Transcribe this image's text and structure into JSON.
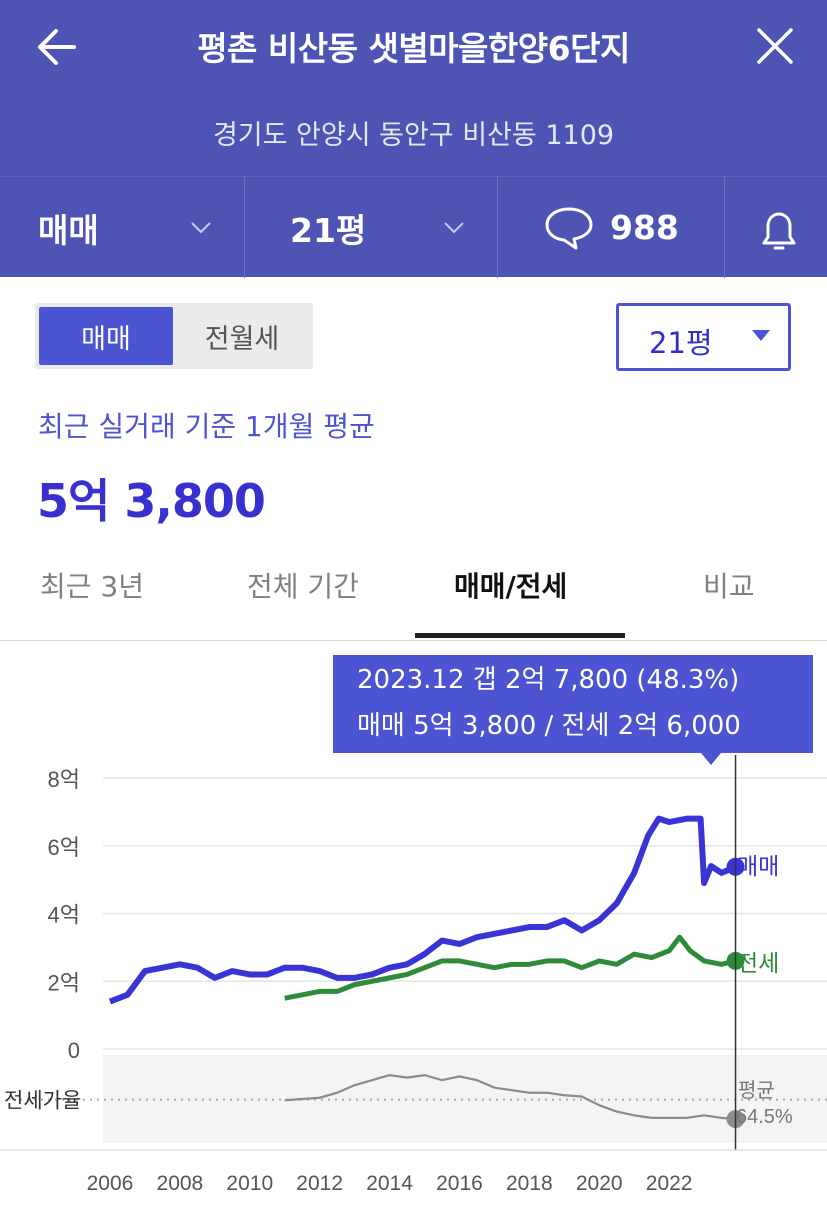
{
  "header": {
    "title": "평촌 비산동 샛별마을한양6단지",
    "address": "경기도 안양시 동안구 비산동 1109",
    "back_icon": "arrow-left-icon",
    "close_icon": "close-icon"
  },
  "tabs_bar": {
    "deal_type": "매매",
    "size": "21평",
    "comment_count": "988",
    "comment_icon": "speech-bubble-icon",
    "bell_icon": "bell-icon"
  },
  "toggle": {
    "selected": "매매",
    "other": "전월세"
  },
  "size_select": {
    "value": "21평"
  },
  "summary": {
    "label": "최근 실거래 기준 1개월 평균",
    "price": "5억 3,800"
  },
  "period_tabs": [
    {
      "label": "최근 3년",
      "active": false
    },
    {
      "label": "전체 기간",
      "active": false
    },
    {
      "label": "매매/전세",
      "active": true
    },
    {
      "label": "비교",
      "active": false
    }
  ],
  "tooltip": {
    "line1": "2023.12  갭 2억 7,800 (48.3%)",
    "line2": "매매 5억 3,800 / 전세 2억 6,000"
  },
  "colors": {
    "brand": "#4d54b3",
    "accent": "#4d54d1",
    "sale": "#3a33d6",
    "jeonse": "#2e8b3a",
    "ratio": "#888888"
  },
  "chart_data": {
    "type": "line",
    "y_ticks": [
      "8억",
      "6억",
      "4억",
      "2억",
      "0"
    ],
    "ylim": [
      0,
      8
    ],
    "xlim": [
      2005.8,
      2024.6
    ],
    "x_ticks": [
      "2006",
      "2008",
      "2010",
      "2012",
      "2014",
      "2016",
      "2018",
      "2020",
      "2022"
    ],
    "series": [
      {
        "name": "매매",
        "x": [
          2006.0,
          2006.5,
          2007.0,
          2007.5,
          2008.0,
          2008.5,
          2009.0,
          2009.5,
          2010.0,
          2010.5,
          2011.0,
          2011.5,
          2012.0,
          2012.5,
          2013.0,
          2013.5,
          2014.0,
          2014.5,
          2015.0,
          2015.5,
          2016.0,
          2016.5,
          2017.0,
          2017.5,
          2018.0,
          2018.5,
          2019.0,
          2019.5,
          2020.0,
          2020.5,
          2021.0,
          2021.4,
          2021.7,
          2022.0,
          2022.5,
          2022.9,
          2023.0,
          2023.2,
          2023.5,
          2023.9
        ],
        "values": [
          1.4,
          1.6,
          2.3,
          2.4,
          2.5,
          2.4,
          2.1,
          2.3,
          2.2,
          2.2,
          2.4,
          2.4,
          2.3,
          2.1,
          2.1,
          2.2,
          2.4,
          2.5,
          2.8,
          3.2,
          3.1,
          3.3,
          3.4,
          3.5,
          3.6,
          3.6,
          3.8,
          3.5,
          3.8,
          4.3,
          5.2,
          6.3,
          6.8,
          6.7,
          6.8,
          6.8,
          4.9,
          5.4,
          5.2,
          5.38
        ]
      },
      {
        "name": "전세",
        "x": [
          2011.0,
          2011.5,
          2012.0,
          2012.5,
          2013.0,
          2013.5,
          2014.0,
          2014.5,
          2015.0,
          2015.5,
          2016.0,
          2016.5,
          2017.0,
          2017.5,
          2018.0,
          2018.5,
          2019.0,
          2019.5,
          2020.0,
          2020.5,
          2021.0,
          2021.5,
          2022.0,
          2022.3,
          2022.6,
          2023.0,
          2023.5,
          2023.9
        ],
        "values": [
          1.5,
          1.6,
          1.7,
          1.7,
          1.9,
          2.0,
          2.1,
          2.2,
          2.4,
          2.6,
          2.6,
          2.5,
          2.4,
          2.5,
          2.5,
          2.6,
          2.6,
          2.4,
          2.6,
          2.5,
          2.8,
          2.7,
          2.9,
          3.3,
          2.9,
          2.6,
          2.5,
          2.6
        ]
      }
    ],
    "series_labels": [
      "매매",
      "전세"
    ],
    "ratio": {
      "label": "전세가율",
      "avg_label": "평균",
      "avg_value": "64.5%",
      "x": [
        2011.0,
        2011.5,
        2012.0,
        2012.5,
        2013.0,
        2013.5,
        2014.0,
        2014.5,
        2015.0,
        2015.5,
        2016.0,
        2016.5,
        2017.0,
        2017.5,
        2018.0,
        2018.5,
        2019.0,
        2019.5,
        2020.0,
        2020.5,
        2021.0,
        2021.5,
        2022.0,
        2022.5,
        2023.0,
        2023.5,
        2023.9
      ],
      "values": [
        64,
        65,
        66,
        70,
        76,
        80,
        84,
        82,
        84,
        80,
        83,
        80,
        74,
        72,
        70,
        70,
        68,
        67,
        60,
        55,
        52,
        50,
        50,
        50,
        52,
        50,
        49
      ],
      "ylim": [
        30,
        100
      ],
      "avg": 64.5
    },
    "cursor_x": 2023.9,
    "grid": true
  }
}
